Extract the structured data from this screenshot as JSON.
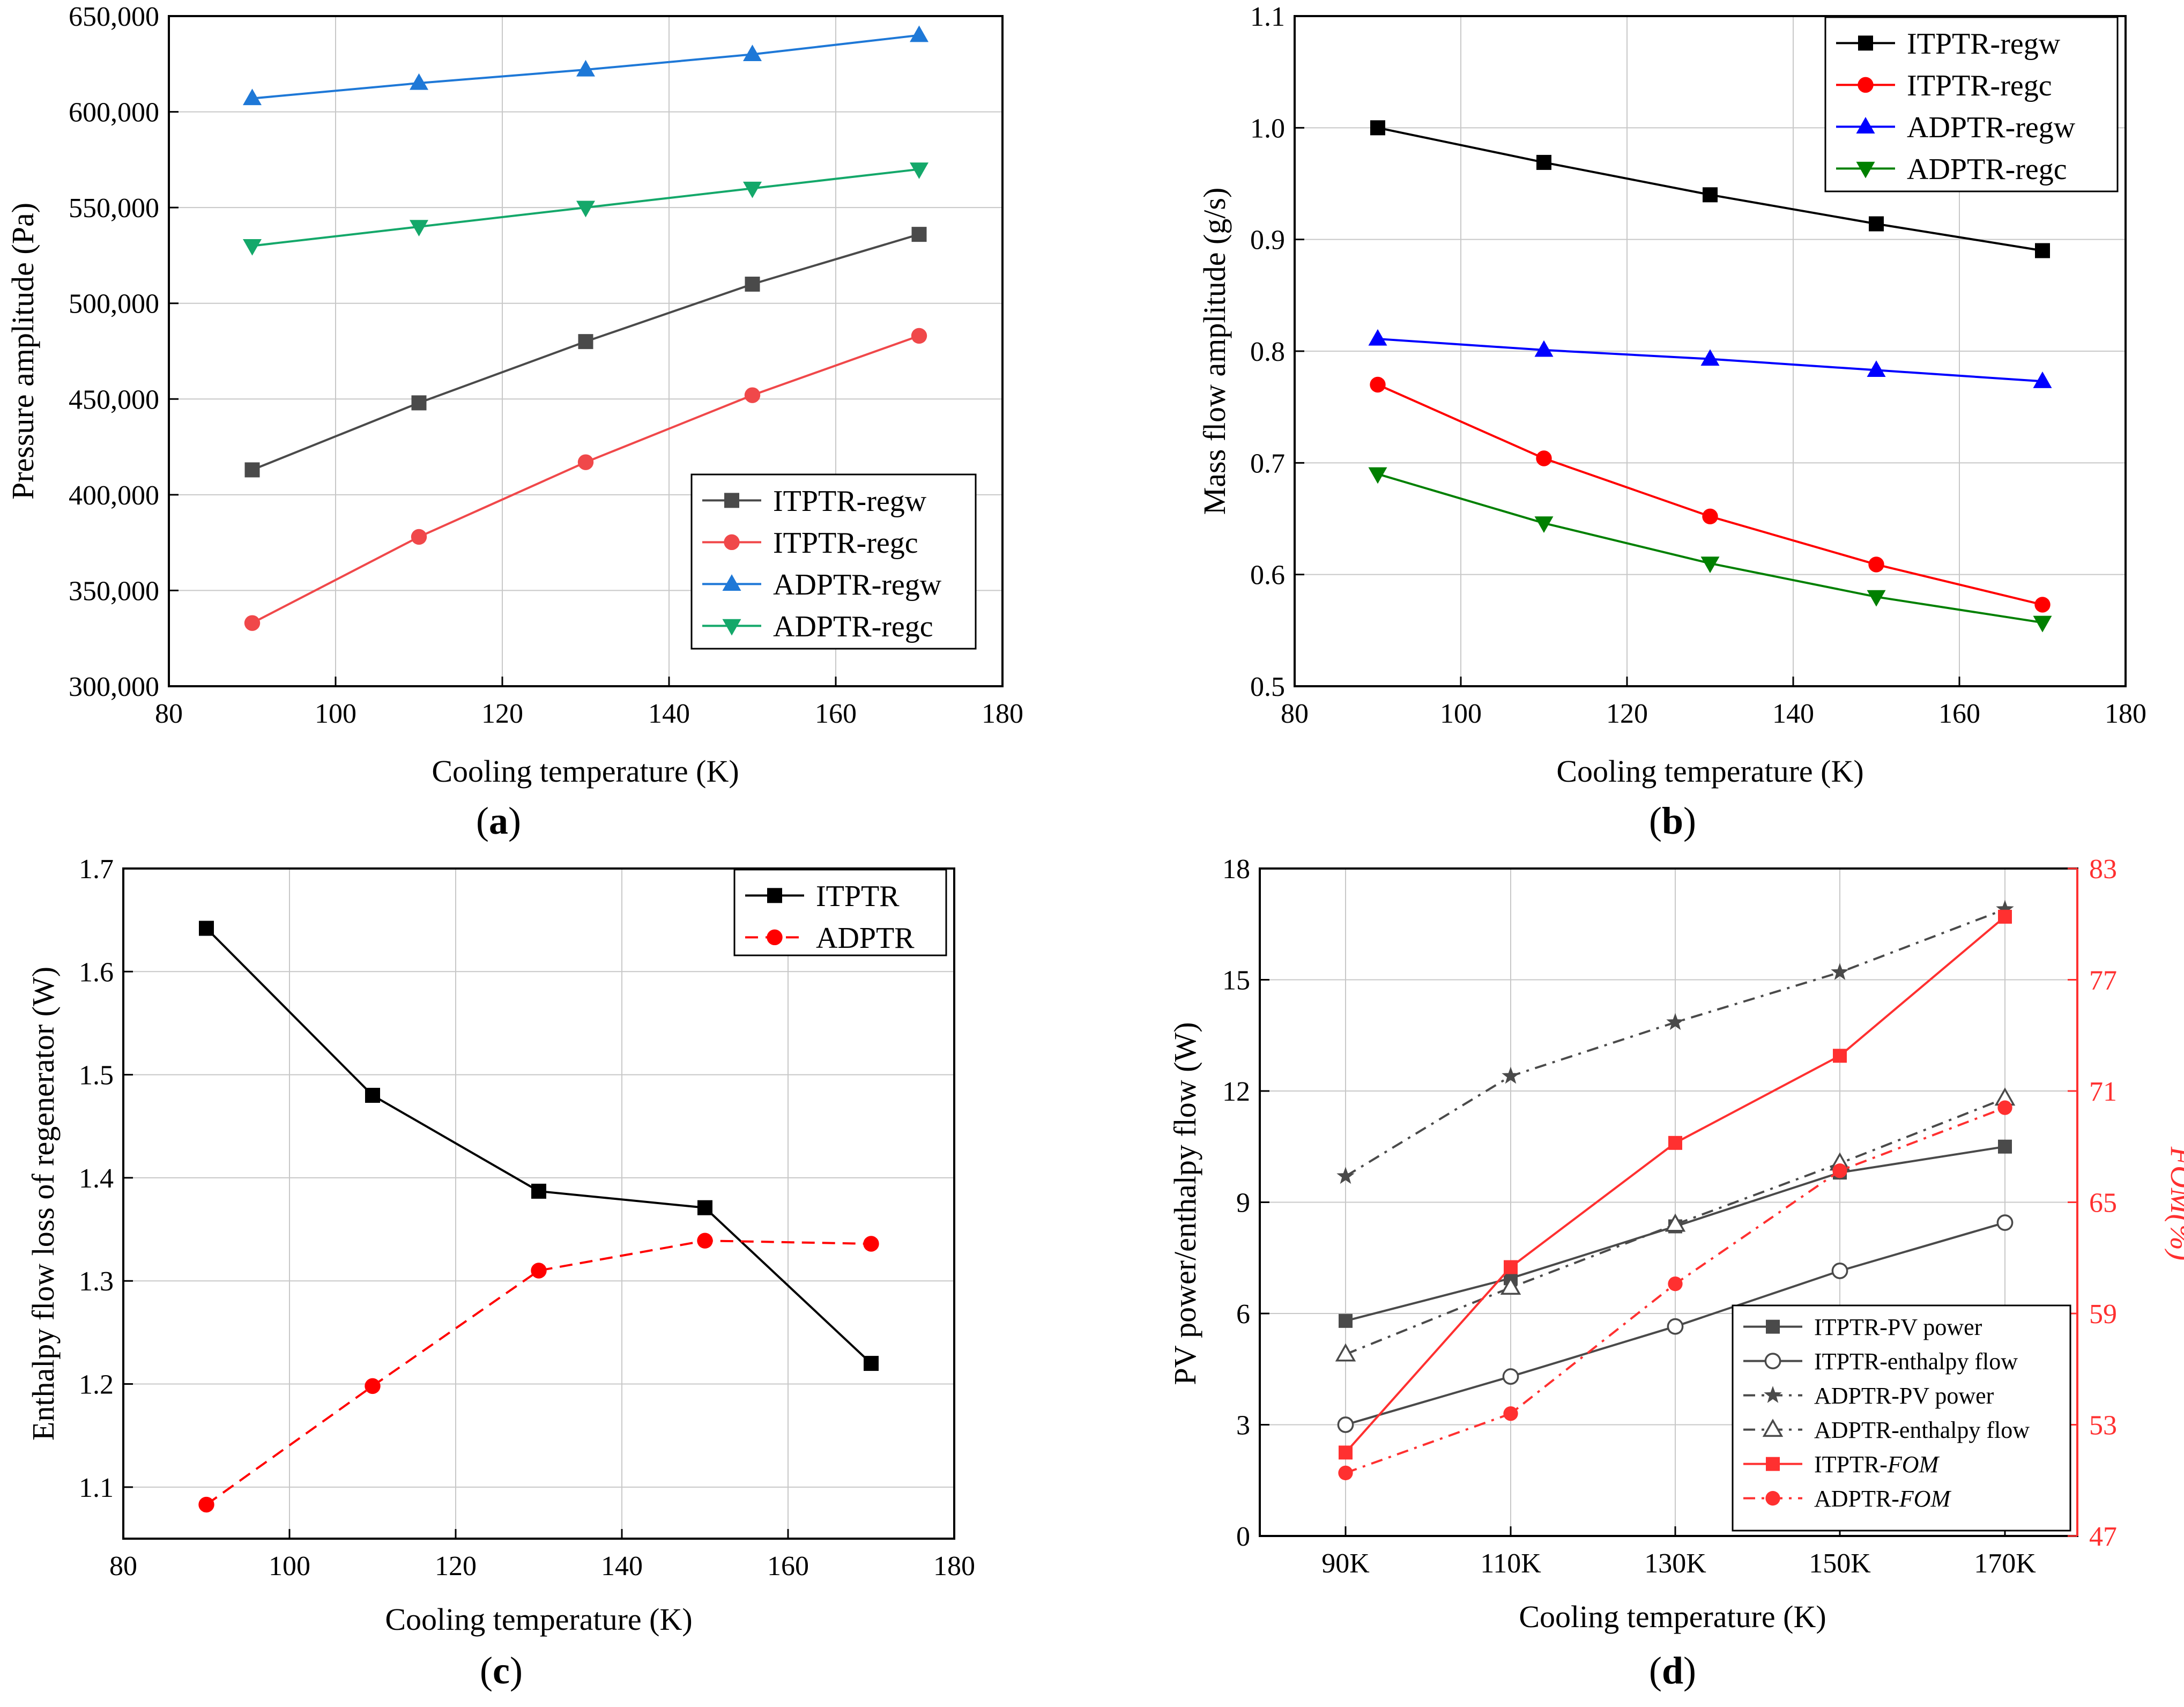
{
  "panels": [
    {
      "label": "(a)",
      "label_letter": "a",
      "xlabel": "Cooling temperature (K)",
      "ylabel": "Pressure amplitude (Pa)"
    },
    {
      "label": "(b)",
      "label_letter": "b",
      "xlabel": "Cooling temperature (K)",
      "ylabel": "Mass flow amplitude (g/s)"
    },
    {
      "label": "(c)",
      "label_letter": "c",
      "xlabel": "Cooling temperature (K)",
      "ylabel": "Enthalpy flow loss of regenerator (W)"
    },
    {
      "label": "(d)",
      "label_letter": "d",
      "xlabel": "Cooling temperature (K)",
      "ylabel": "PV power/enthalpy flow (W)",
      "ylabel_right": "FOM(%)"
    }
  ],
  "chart_data": [
    {
      "id": "a",
      "type": "line",
      "title": "",
      "xlabel": "Cooling temperature (K)",
      "ylabel": "Pressure amplitude (Pa)",
      "x": [
        90,
        110,
        130,
        150,
        170
      ],
      "xlim": [
        80,
        180
      ],
      "ylim": [
        300000,
        650000
      ],
      "xticks": [
        80,
        100,
        120,
        140,
        160,
        180
      ],
      "yticks": [
        300000,
        350000,
        400000,
        450000,
        500000,
        550000,
        600000,
        650000
      ],
      "ytick_labels": [
        "300,000",
        "350,000",
        "400,000",
        "450,000",
        "500,000",
        "550,000",
        "600,000",
        "650,000"
      ],
      "grid": true,
      "legend_position": "bottom-right",
      "series": [
        {
          "name": "ITPTR-regw",
          "color": "#4a4a4a",
          "marker": "square",
          "dash": "solid",
          "values": [
            413000,
            448000,
            480000,
            510000,
            536000
          ]
        },
        {
          "name": "ITPTR-regc",
          "color": "#f0484a",
          "marker": "circle",
          "dash": "solid",
          "values": [
            333000,
            378000,
            417000,
            452000,
            483000
          ]
        },
        {
          "name": "ADPTR-regw",
          "color": "#1e78d7",
          "marker": "triangle-up",
          "dash": "solid",
          "values": [
            607000,
            615000,
            622000,
            630000,
            640000
          ]
        },
        {
          "name": "ADPTR-regc",
          "color": "#14a86a",
          "marker": "triangle-down",
          "dash": "solid",
          "values": [
            530000,
            540000,
            550000,
            560000,
            570000
          ]
        }
      ]
    },
    {
      "id": "b",
      "type": "line",
      "title": "",
      "xlabel": "Cooling temperature (K)",
      "ylabel": "Mass flow amplitude (g/s)",
      "x": [
        90,
        110,
        130,
        150,
        170
      ],
      "xlim": [
        80,
        180
      ],
      "ylim": [
        0.5,
        1.1
      ],
      "xticks": [
        80,
        100,
        120,
        140,
        160,
        180
      ],
      "yticks": [
        0.5,
        0.6,
        0.7,
        0.8,
        0.9,
        1.0,
        1.1
      ],
      "ytick_labels": [
        "0.5",
        "0.6",
        "0.7",
        "0.8",
        "0.9",
        "1.0",
        "1.1"
      ],
      "grid": true,
      "legend_position": "top-right",
      "series": [
        {
          "name": "ITPTR-regw",
          "color": "#000000",
          "marker": "square",
          "dash": "solid",
          "values": [
            1.0,
            0.969,
            0.94,
            0.914,
            0.89
          ]
        },
        {
          "name": "ITPTR-regc",
          "color": "#ff0000",
          "marker": "circle",
          "dash": "solid",
          "values": [
            0.77,
            0.704,
            0.652,
            0.609,
            0.573
          ]
        },
        {
          "name": "ADPTR-regw",
          "color": "#0000ff",
          "marker": "triangle-up",
          "dash": "solid",
          "values": [
            0.811,
            0.801,
            0.793,
            0.783,
            0.773
          ]
        },
        {
          "name": "ADPTR-regc",
          "color": "#008000",
          "marker": "triangle-down",
          "dash": "solid",
          "values": [
            0.69,
            0.646,
            0.61,
            0.58,
            0.557
          ]
        }
      ]
    },
    {
      "id": "c",
      "type": "line",
      "title": "",
      "xlabel": "Cooling temperature (K)",
      "ylabel": "Enthalpy flow loss of regenerator (W)",
      "x": [
        90,
        110,
        130,
        150,
        170
      ],
      "xlim": [
        80,
        180
      ],
      "ylim": [
        1.05,
        1.7
      ],
      "xticks": [
        80,
        100,
        120,
        140,
        160,
        180
      ],
      "yticks": [
        1.1,
        1.2,
        1.3,
        1.4,
        1.5,
        1.6,
        1.7
      ],
      "ytick_labels": [
        "1.1",
        "1.2",
        "1.3",
        "1.4",
        "1.5",
        "1.6",
        "1.7"
      ],
      "grid": true,
      "legend_position": "top-right",
      "series": [
        {
          "name": "ITPTR",
          "color": "#000000",
          "marker": "square",
          "dash": "solid",
          "values": [
            1.642,
            1.48,
            1.387,
            1.371,
            1.22
          ]
        },
        {
          "name": "ADPTR",
          "color": "#ff0000",
          "marker": "circle",
          "dash": "dashed",
          "values": [
            1.083,
            1.198,
            1.31,
            1.339,
            1.336
          ]
        }
      ]
    },
    {
      "id": "d",
      "type": "line",
      "title": "",
      "xlabel": "Cooling temperature (K)",
      "ylabel": "PV power/enthalpy flow (W)",
      "ylabel_right": "FOM(%)",
      "categories": [
        "90K",
        "110K",
        "130K",
        "150K",
        "170K"
      ],
      "ylim": [
        0,
        18
      ],
      "ylim_right": [
        47,
        83
      ],
      "yticks": [
        0,
        3,
        6,
        9,
        12,
        15,
        18
      ],
      "ytick_labels": [
        "0",
        "3",
        "6",
        "9",
        "12",
        "15",
        "18"
      ],
      "yticks_right": [
        47,
        53,
        59,
        65,
        71,
        77,
        83
      ],
      "ytick_labels_right": [
        "47",
        "53",
        "59",
        "65",
        "71",
        "77",
        "83"
      ],
      "grid": true,
      "legend_position": "bottom-right",
      "series": [
        {
          "name": "ITPTR-PV power",
          "legend_prefix": "ITPTR-PV power",
          "legend_suffix": "",
          "color": "#4a4a4a",
          "marker": "square",
          "dash": "solid",
          "axis": "left",
          "values": [
            5.8,
            6.95,
            8.35,
            9.8,
            10.5
          ]
        },
        {
          "name": "ITPTR-enthalpy flow",
          "legend_prefix": "ITPTR-enthalpy flow",
          "legend_suffix": "",
          "color": "#4a4a4a",
          "marker": "circle-open",
          "dash": "solid",
          "axis": "left",
          "values": [
            3.0,
            4.3,
            5.65,
            7.15,
            8.45
          ]
        },
        {
          "name": "ADPTR-PV power",
          "legend_prefix": "ADPTR-PV power",
          "legend_suffix": "",
          "color": "#4a4a4a",
          "marker": "star",
          "dash": "dashdot",
          "axis": "left",
          "values": [
            9.7,
            12.4,
            13.85,
            15.2,
            16.9
          ]
        },
        {
          "name": "ADPTR-enthalpy flow",
          "legend_prefix": "ADPTR-enthalpy flow",
          "legend_suffix": "",
          "color": "#4a4a4a",
          "marker": "triangle-open",
          "dash": "dashdot",
          "axis": "left",
          "values": [
            4.9,
            6.7,
            8.4,
            10.05,
            11.8
          ]
        },
        {
          "name": "ITPTR-FOM",
          "legend_prefix": "ITPTR-",
          "legend_suffix": "FOM",
          "color": "#ff3030",
          "marker": "square",
          "dash": "solid",
          "axis": "right",
          "values": [
            51.5,
            61.5,
            68.2,
            72.9,
            80.4
          ]
        },
        {
          "name": "ADPTR-FOM",
          "legend_prefix": "ADPTR-",
          "legend_suffix": "FOM",
          "color": "#ff3030",
          "marker": "circle",
          "dash": "dashdot",
          "axis": "right",
          "values": [
            50.4,
            53.6,
            60.6,
            66.7,
            70.1
          ]
        }
      ]
    }
  ]
}
